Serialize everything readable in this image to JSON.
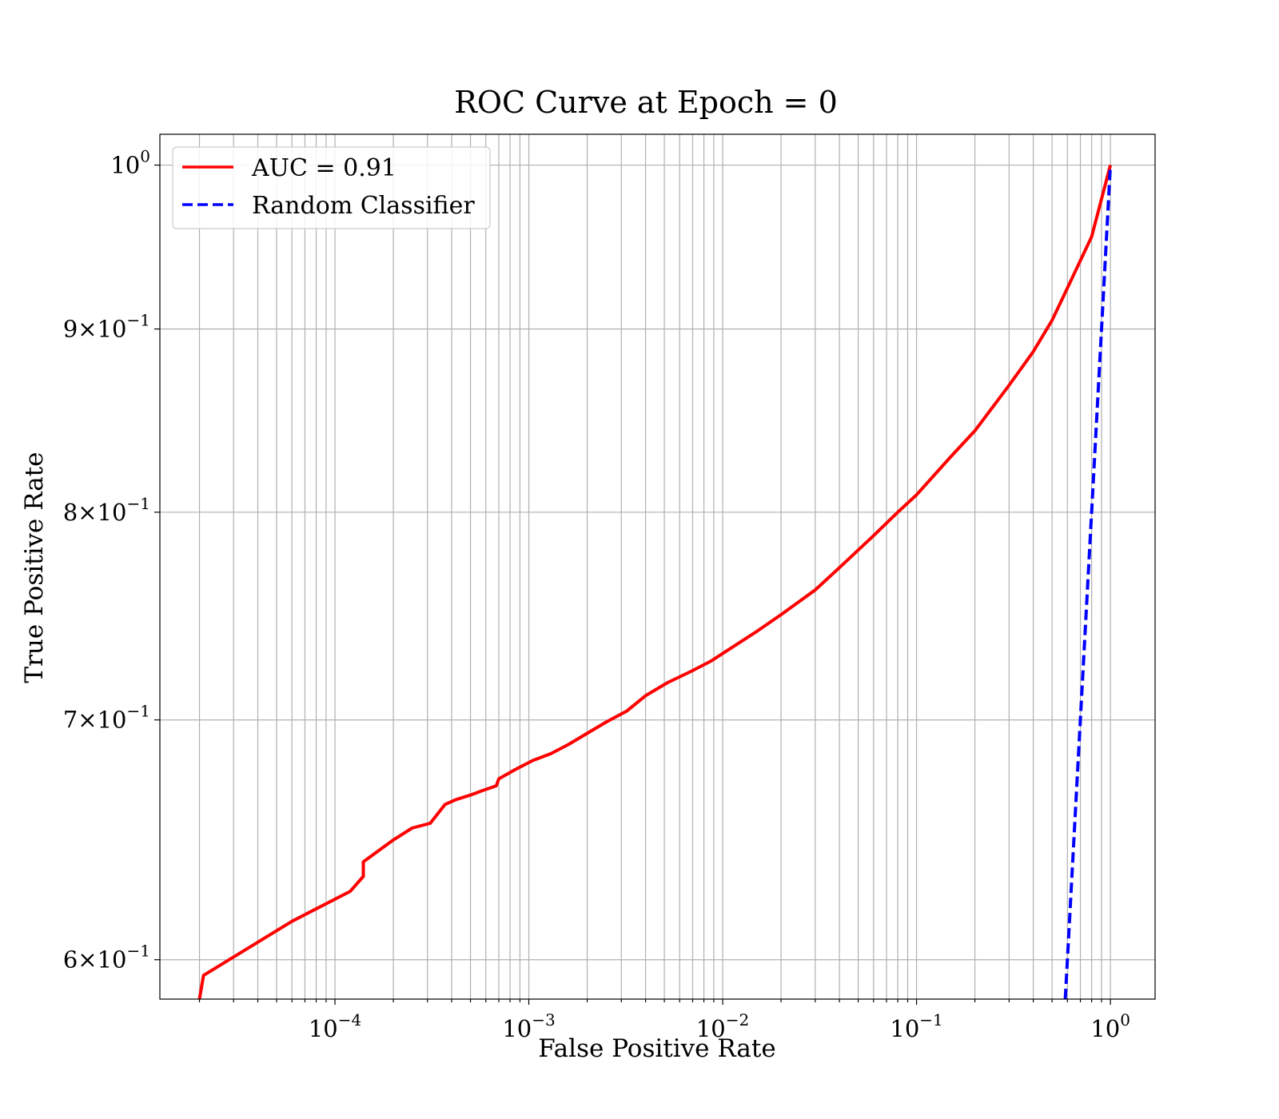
{
  "chart_data": {
    "type": "line",
    "title": "ROC Curve at Epoch = 0",
    "xlabel": "False Positive Rate",
    "ylabel": "True Positive Rate",
    "xscale": "log",
    "yscale": "log",
    "xlim": [
      1.25e-05,
      1.7
    ],
    "ylim": [
      0.585,
      1.02
    ],
    "grid": true,
    "grid_which": "both",
    "legend_position": "top-left",
    "xticks": [
      {
        "value": 0.0001,
        "base": "10",
        "exp": "−4"
      },
      {
        "value": 0.001,
        "base": "10",
        "exp": "−3"
      },
      {
        "value": 0.01,
        "base": "10",
        "exp": "−2"
      },
      {
        "value": 0.1,
        "base": "10",
        "exp": "−1"
      },
      {
        "value": 1,
        "base": "10",
        "exp": "0"
      }
    ],
    "yticks": [
      {
        "value": 1.0,
        "base": "10",
        "exp": "0"
      },
      {
        "value": 0.9,
        "base": "9×10",
        "exp": "−1"
      },
      {
        "value": 0.8,
        "base": "8×10",
        "exp": "−1"
      },
      {
        "value": 0.7,
        "base": "7×10",
        "exp": "−1"
      },
      {
        "value": 0.6,
        "base": "6×10",
        "exp": "−1"
      }
    ],
    "series": [
      {
        "name": "AUC = 0.91",
        "color": "#ff0000",
        "style": "solid",
        "x": [
          2e-05,
          2.1e-05,
          6e-05,
          0.00012,
          0.00014,
          0.00014,
          0.0002,
          0.00025,
          0.00031,
          0.00037,
          0.00042,
          0.0005,
          0.00058,
          0.00068,
          0.0007,
          0.00085,
          0.00105,
          0.0013,
          0.0016,
          0.002,
          0.0025,
          0.0032,
          0.004,
          0.0052,
          0.0068,
          0.0087,
          0.011,
          0.015,
          0.02,
          0.03,
          0.04,
          0.06,
          0.08,
          0.1,
          0.15,
          0.2,
          0.3,
          0.4,
          0.5,
          0.6,
          0.8,
          1.0
        ],
        "y": [
          0.585,
          0.594,
          0.615,
          0.627,
          0.633,
          0.639,
          0.648,
          0.653,
          0.655,
          0.663,
          0.665,
          0.667,
          0.669,
          0.671,
          0.674,
          0.678,
          0.682,
          0.685,
          0.689,
          0.694,
          0.699,
          0.704,
          0.711,
          0.717,
          0.722,
          0.727,
          0.733,
          0.741,
          0.749,
          0.761,
          0.772,
          0.788,
          0.8,
          0.809,
          0.829,
          0.843,
          0.868,
          0.887,
          0.905,
          0.924,
          0.955,
          1.0
        ]
      },
      {
        "name": "Random Classifier",
        "color": "#0000ff",
        "style": "dashed",
        "x": [
          0.585,
          0.6,
          0.7,
          0.8,
          0.9,
          1.0
        ],
        "y": [
          0.585,
          0.6,
          0.7,
          0.8,
          0.9,
          1.0
        ]
      }
    ]
  }
}
